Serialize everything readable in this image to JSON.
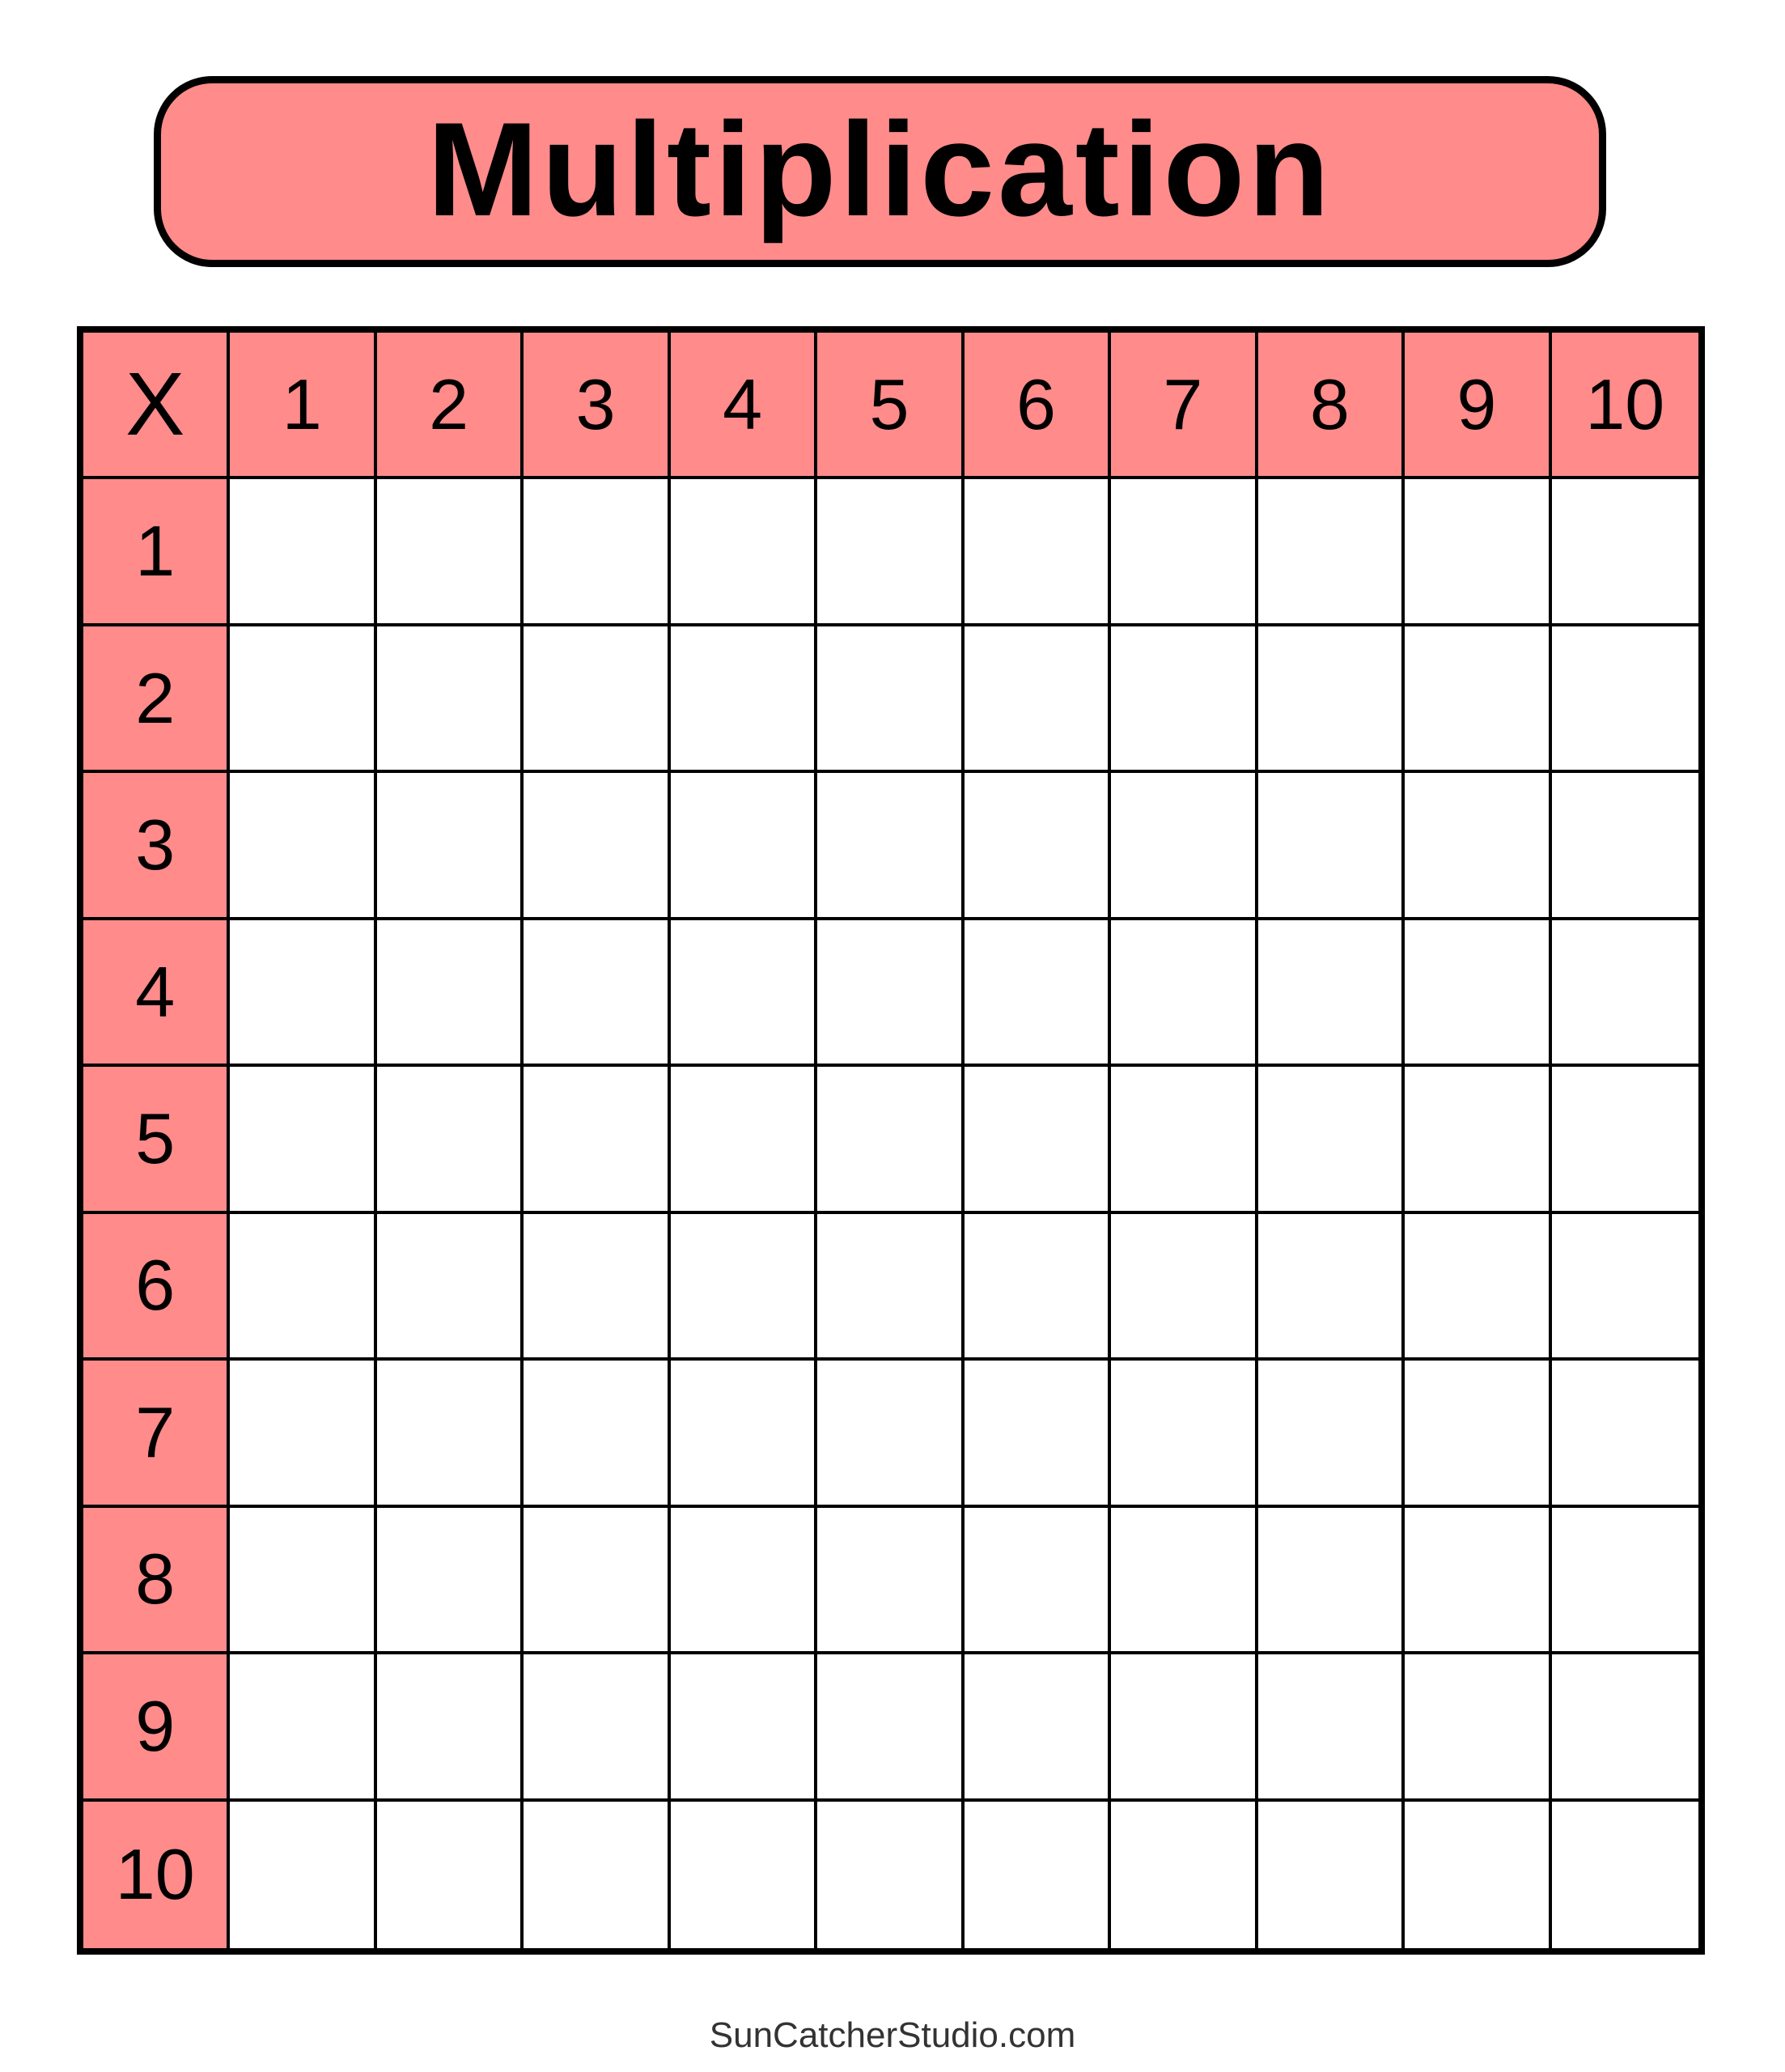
{
  "title": "Multiplication",
  "accent_color": "#FF8B8B",
  "table": {
    "corner": "X",
    "column_headers": [
      "1",
      "2",
      "3",
      "4",
      "5",
      "6",
      "7",
      "8",
      "9",
      "10"
    ],
    "row_headers": [
      "1",
      "2",
      "3",
      "4",
      "5",
      "6",
      "7",
      "8",
      "9",
      "10"
    ]
  },
  "footer": "SunCatcherStudio.com"
}
